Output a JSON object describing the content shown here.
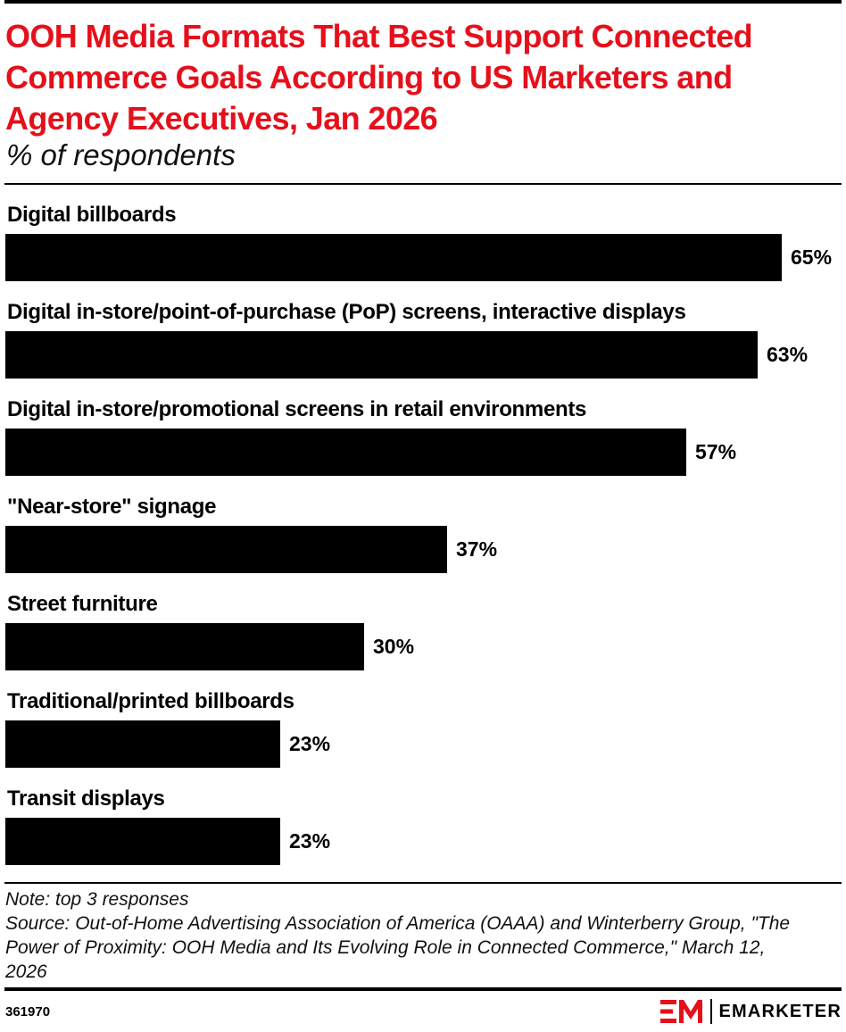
{
  "header": {
    "title": "OOH Media Formats That Best Support Connected Commerce Goals According to US Marketers and Agency Executives, Jan 2026",
    "subtitle": "% of respondents"
  },
  "chart_data": {
    "type": "bar",
    "orientation": "horizontal",
    "categories": [
      "Digital billboards",
      "Digital in-store/point-of-purchase (PoP) screens, interactive displays",
      "Digital in-store/promotional screens in retail environments",
      "\"Near-store\" signage",
      "Street furniture",
      "Traditional/printed billboards",
      "Transit displays"
    ],
    "values": [
      65,
      63,
      57,
      37,
      30,
      23,
      23
    ],
    "value_labels": [
      "65%",
      "63%",
      "57%",
      "37%",
      "30%",
      "23%",
      "23%"
    ],
    "bar_color": "#000000",
    "xlim": [
      0,
      65
    ],
    "grid": false,
    "legend": "none"
  },
  "footer": {
    "note": "Note: top 3 responses",
    "source": "Source: Out-of-Home Advertising Association of America (OAAA) and Winterberry Group, \"The Power of Proximity: OOH Media and Its Evolving Role in Connected Commerce,\" March 12, 2026",
    "chart_id": "361970",
    "brand": "EMARKETER",
    "brand_color": "#e5101b"
  },
  "colors": {
    "title": "#e5101b",
    "text": "#000000",
    "accent": "#e5101b"
  }
}
